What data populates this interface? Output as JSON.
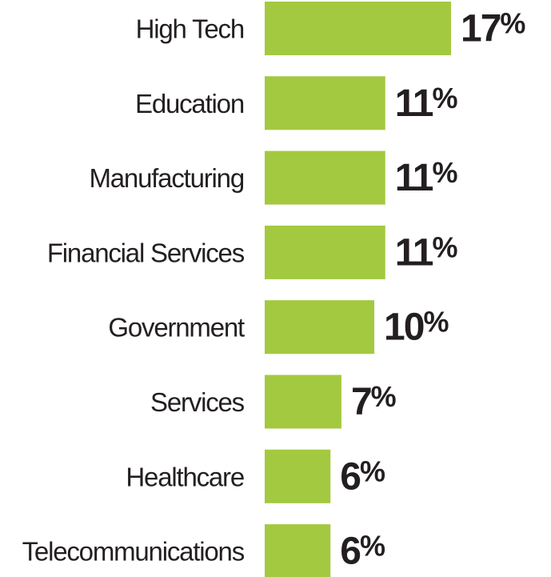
{
  "chart_data": {
    "type": "bar",
    "orientation": "horizontal",
    "categories": [
      "High Tech",
      "Education",
      "Manufacturing",
      "Financial Services",
      "Government",
      "Services",
      "Healthcare",
      "Telecommunications"
    ],
    "values": [
      17,
      11,
      11,
      11,
      10,
      7,
      6,
      6
    ],
    "value_labels": [
      "17%",
      "11%",
      "11%",
      "11%",
      "10%",
      "7%",
      "6%",
      "6%"
    ],
    "unit": "%",
    "title": "",
    "xlabel": "",
    "ylabel": "",
    "xlim": [
      0,
      17
    ],
    "grid": false,
    "bar_color": "#a3c940",
    "text_color": "#231f20"
  }
}
